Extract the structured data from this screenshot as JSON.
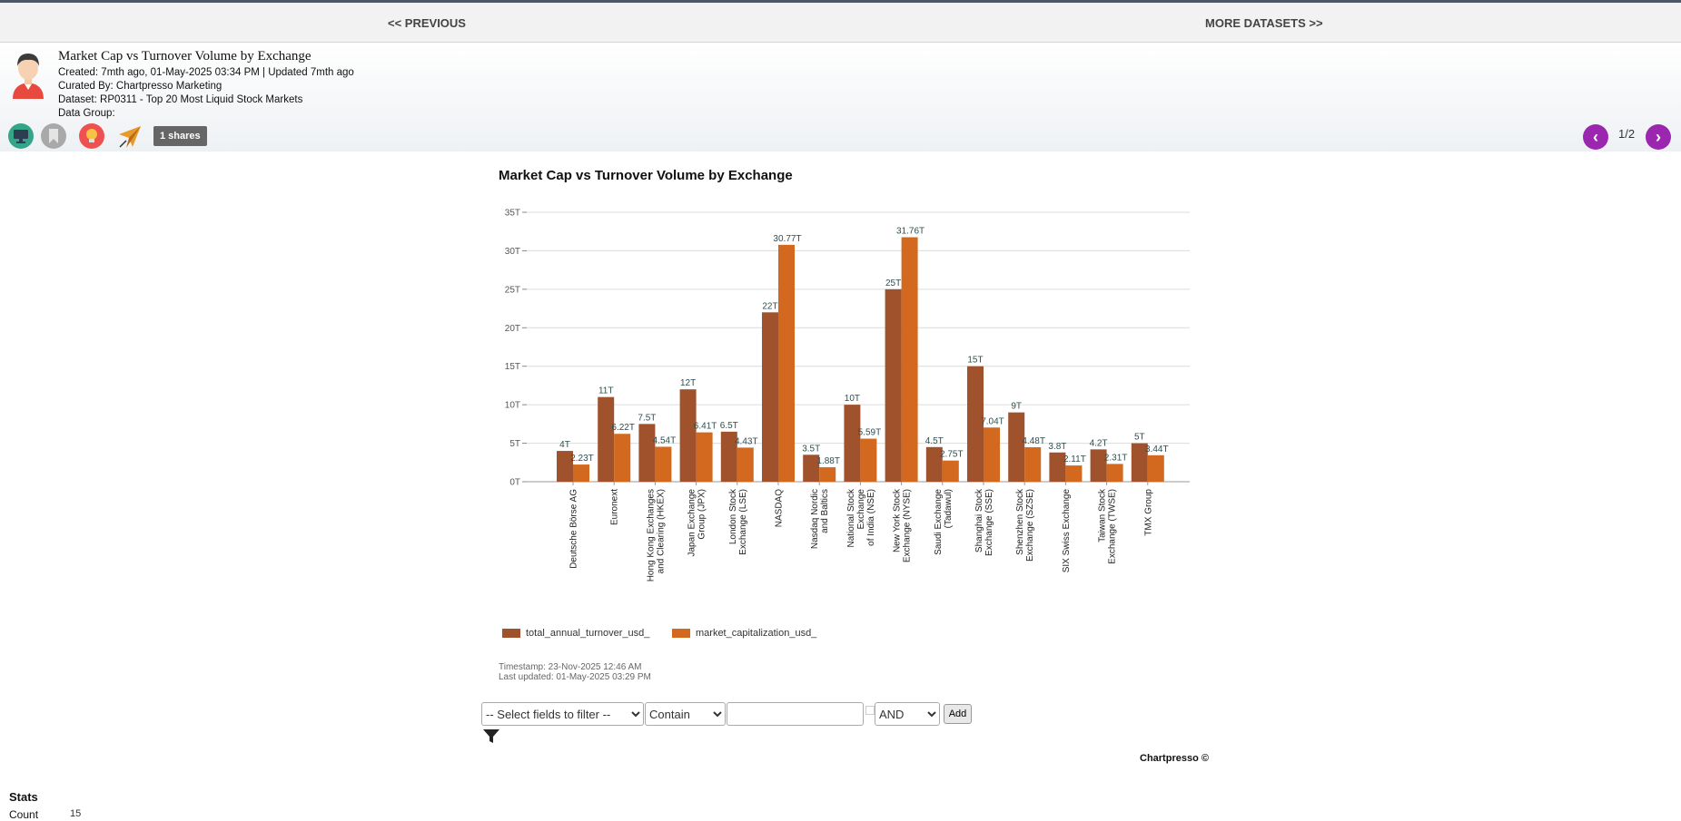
{
  "nav": {
    "previous_label": "<< PREVIOUS",
    "more_label": "MORE DATASETS >>"
  },
  "header": {
    "title": "Market Cap vs Turnover Volume by Exchange",
    "created": "Created: 7mth ago, 01-May-2025 03:34 PM | Updated 7mth ago",
    "curated": "Curated By: Chartpresso Marketing",
    "dataset": "Dataset: RP0311 - Top 20 Most Liquid Stock Markets",
    "data_group": "Data Group:"
  },
  "toolbar": {
    "icons": [
      "monitor-icon",
      "bookmark-icon",
      "lightbulb-icon",
      "paper-plane-icon"
    ],
    "shares_label": "1 shares"
  },
  "pager": {
    "text": "1/2"
  },
  "chart_data": {
    "type": "bar",
    "title": "Market Cap vs Turnover Volume by Exchange",
    "categories": [
      "Deutsche Börse AG",
      "Euronext",
      "Hong Kong Exchanges and Clearing (HKEX)",
      "Japan Exchange Group (JPX)",
      "London Stock Exchange (LSE)",
      "NASDAQ",
      "Nasdaq Nordic and Baltics",
      "National Stock Exchange of India (NSE)",
      "New York Stock Exchange (NYSE)",
      "Saudi Exchange (Tadawul)",
      "Shanghai Stock Exchange (SSE)",
      "Shenzhen Stock Exchange (SZSE)",
      "SIX Swiss Exchange",
      "Taiwan Stock Exchange (TWSE)",
      "TMX Group"
    ],
    "category_lines": [
      [
        "Deutsche Börse AG"
      ],
      [
        "Euronext"
      ],
      [
        "Hong Kong Exchanges",
        "and Clearing (HKEX)"
      ],
      [
        "Japan Exchange",
        "Group (JPX)"
      ],
      [
        "London Stock",
        "Exchange (LSE)"
      ],
      [
        "NASDAQ"
      ],
      [
        "Nasdaq Nordic",
        "and Baltics"
      ],
      [
        "National Stock",
        "Exchange",
        "of India (NSE)"
      ],
      [
        "New York Stock",
        "Exchange (NYSE)"
      ],
      [
        "Saudi Exchange",
        "(Tadawul)"
      ],
      [
        "Shanghai Stock",
        "Exchange (SSE)"
      ],
      [
        "Shenzhen Stock",
        "Exchange (SZSE)"
      ],
      [
        "SIX Swiss Exchange"
      ],
      [
        "Taiwan Stock",
        "Exchange (TWSE)"
      ],
      [
        "TMX Group"
      ]
    ],
    "series": [
      {
        "name": "total_annual_turnover_usd_",
        "color": "#a0522d",
        "values": [
          4,
          11,
          7.5,
          12,
          6.5,
          22,
          3.5,
          10,
          25,
          4.5,
          15,
          9,
          3.8,
          4.2,
          5
        ],
        "labels": [
          "4T",
          "11T",
          "7.5T",
          "12T",
          "6.5T",
          "22T",
          "3.5T",
          "10T",
          "25T",
          "4.5T",
          "15T",
          "9T",
          "3.8T",
          "4.2T",
          "5T"
        ]
      },
      {
        "name": "market_capitalization_usd_",
        "color": "#d2691e",
        "values": [
          2.23,
          6.22,
          4.54,
          6.41,
          4.43,
          30.77,
          1.88,
          5.59,
          31.76,
          2.75,
          7.04,
          4.48,
          2.11,
          2.31,
          3.44
        ],
        "labels": [
          "2.23T",
          "6.22T",
          "4.54T",
          "6.41T",
          "4.43T",
          "30.77T",
          "1.88T",
          "5.59T",
          "31.76T",
          "2.75T",
          "7.04T",
          "4.48T",
          "2.11T",
          "2.31T",
          "3.44T"
        ]
      }
    ],
    "yticks": [
      "0T",
      "5T",
      "10T",
      "15T",
      "20T",
      "25T",
      "30T",
      "35T"
    ],
    "ylim": [
      0,
      35
    ],
    "grid": true,
    "legend": "bottom-left"
  },
  "timestamps": {
    "timestamp": "Timestamp: 23-Nov-2025 12:46 AM",
    "last_updated": "Last updated: 01-May-2025 03:29 PM"
  },
  "filter": {
    "field_selected": "-- Select fields to filter --",
    "operator_selected": "Contain",
    "value": "",
    "logic_selected": "AND",
    "add_label": "Add"
  },
  "brand": "Chartpresso ©",
  "stats": {
    "title": "Stats",
    "count_label": "Count",
    "count_value": "15"
  }
}
